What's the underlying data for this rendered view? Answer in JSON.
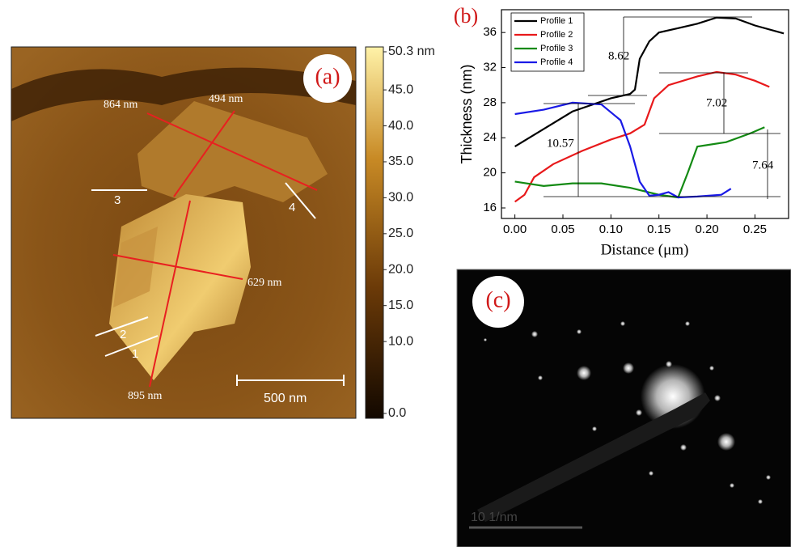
{
  "panel_a": {
    "label": "(a)",
    "annotations": [
      "864 nm",
      "494 nm",
      "629 nm",
      "895 nm"
    ],
    "line_labels": [
      "1",
      "2",
      "3",
      "4"
    ],
    "scale_bar": "500 nm",
    "colorbar": {
      "lim": [
        0,
        50.3
      ],
      "ticks": [
        {
          "value": 50.3,
          "label": "50.3 nm"
        },
        {
          "value": 45,
          "label": "45.0"
        },
        {
          "value": 40,
          "label": "40.0"
        },
        {
          "value": 35,
          "label": "35.0"
        },
        {
          "value": 30,
          "label": "30.0"
        },
        {
          "value": 25,
          "label": "25.0"
        },
        {
          "value": 20,
          "label": "20.0"
        },
        {
          "value": 15,
          "label": "15.0"
        },
        {
          "value": 10,
          "label": "10.0"
        },
        {
          "value": 0,
          "label": "0.0"
        }
      ]
    }
  },
  "chart_data": {
    "type": "line",
    "panel_label": "(b)",
    "x_label": "Distance (μm)",
    "y_label": "Thickness (nm)",
    "xlim": [
      -0.014,
      0.285
    ],
    "ylim": [
      14.8,
      38.6
    ],
    "xticks": [
      {
        "value": 0,
        "label": "0.00"
      },
      {
        "value": 0.05,
        "label": "0.05"
      },
      {
        "value": 0.1,
        "label": "0.10"
      },
      {
        "value": 0.15,
        "label": "0.15"
      },
      {
        "value": 0.2,
        "label": "0.20"
      },
      {
        "value": 0.25,
        "label": "0.25"
      }
    ],
    "yticks": [
      16,
      20,
      24,
      28,
      32,
      36
    ],
    "legend": "upper left",
    "series": [
      {
        "name": "Profile 1",
        "color": "#000000",
        "x": [
          0,
          0.03,
          0.06,
          0.1,
          0.12,
          0.125,
          0.13,
          0.14,
          0.15,
          0.17,
          0.19,
          0.21,
          0.23,
          0.25,
          0.28
        ],
        "values": [
          23,
          25,
          27,
          28.5,
          29,
          29.5,
          33,
          35,
          36,
          36.5,
          37,
          37.7,
          37.6,
          36.8,
          35.9
        ]
      },
      {
        "name": "Profile 2",
        "color": "#e8191b",
        "x": [
          0,
          0.01,
          0.02,
          0.04,
          0.07,
          0.1,
          0.12,
          0.135,
          0.145,
          0.16,
          0.19,
          0.21,
          0.23,
          0.25,
          0.265
        ],
        "values": [
          16.7,
          17.5,
          19.5,
          21,
          22.5,
          23.8,
          24.5,
          25.5,
          28.5,
          30,
          31,
          31.5,
          31.2,
          30.5,
          29.8
        ]
      },
      {
        "name": "Profile 3",
        "color": "#138a13",
        "x": [
          0,
          0.03,
          0.06,
          0.09,
          0.12,
          0.15,
          0.17,
          0.18,
          0.19,
          0.22,
          0.245,
          0.26
        ],
        "values": [
          19,
          18.5,
          18.8,
          18.8,
          18.3,
          17.5,
          17.2,
          20,
          23,
          23.5,
          24.5,
          25.2
        ]
      },
      {
        "name": "Profile 4",
        "color": "#1a1ae6",
        "x": [
          0,
          0.03,
          0.06,
          0.09,
          0.11,
          0.12,
          0.13,
          0.14,
          0.15,
          0.16,
          0.17,
          0.19,
          0.215,
          0.225
        ],
        "values": [
          26.7,
          27.2,
          28,
          27.8,
          26,
          23,
          19,
          17.4,
          17.5,
          17.8,
          17.2,
          17.3,
          17.5,
          18.2
        ]
      }
    ],
    "annotations": [
      "8.62",
      "7.02",
      "10.57",
      "7.64"
    ]
  },
  "panel_c": {
    "label": "(c)",
    "scale_bar": "10 1/nm"
  }
}
